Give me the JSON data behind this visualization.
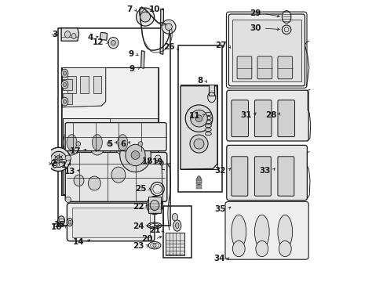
{
  "bg_color": "#ffffff",
  "lc": "#1a1a1a",
  "label_fs": 7.5,
  "labels": {
    "1": [
      0.075,
      0.415,
      0.088,
      0.43
    ],
    "2": [
      0.025,
      0.43,
      0.052,
      0.436
    ],
    "3": [
      0.022,
      0.87,
      0.058,
      0.862
    ],
    "4": [
      0.165,
      0.865,
      0.195,
      0.853
    ],
    "5": [
      0.248,
      0.49,
      0.264,
      0.502
    ],
    "6": [
      0.287,
      0.49,
      0.3,
      0.5
    ],
    "7": [
      0.298,
      0.962,
      0.311,
      0.952
    ],
    "8": [
      0.563,
      0.715,
      0.57,
      0.7
    ],
    "9": [
      0.302,
      0.8,
      0.318,
      0.79
    ],
    "9b": [
      0.32,
      0.748,
      0.328,
      0.758
    ],
    "10": [
      0.395,
      0.962,
      0.392,
      0.95
    ],
    "11": [
      0.55,
      0.59,
      0.558,
      0.6
    ],
    "12": [
      0.205,
      0.845,
      0.218,
      0.84
    ],
    "13": [
      0.105,
      0.39,
      0.128,
      0.4
    ],
    "14": [
      0.138,
      0.14,
      0.175,
      0.152
    ],
    "15": [
      0.06,
      0.2,
      0.072,
      0.208
    ],
    "16": [
      0.09,
      0.192,
      0.107,
      0.205
    ],
    "17": [
      0.13,
      0.46,
      0.16,
      0.47
    ],
    "18": [
      0.378,
      0.426,
      0.393,
      0.416
    ],
    "19": [
      0.412,
      0.422,
      0.42,
      0.412
    ],
    "20": [
      0.378,
      0.15,
      0.402,
      0.17
    ],
    "21": [
      0.402,
      0.178,
      0.408,
      0.166
    ],
    "22": [
      0.348,
      0.265,
      0.368,
      0.274
    ],
    "23": [
      0.348,
      0.125,
      0.368,
      0.132
    ],
    "24": [
      0.348,
      0.195,
      0.368,
      0.202
    ],
    "25": [
      0.358,
      0.328,
      0.375,
      0.322
    ],
    "26": [
      0.452,
      0.828,
      0.468,
      0.818
    ],
    "27": [
      0.635,
      0.835,
      0.655,
      0.825
    ],
    "28": [
      0.808,
      0.59,
      0.82,
      0.6
    ],
    "29": [
      0.752,
      0.95,
      0.772,
      0.935
    ],
    "30": [
      0.752,
      0.9,
      0.772,
      0.89
    ],
    "31": [
      0.72,
      0.59,
      0.738,
      0.602
    ],
    "32": [
      0.628,
      0.392,
      0.648,
      0.402
    ],
    "33": [
      0.782,
      0.392,
      0.802,
      0.404
    ],
    "34": [
      0.628,
      0.082,
      0.658,
      0.095
    ],
    "35": [
      0.628,
      0.256,
      0.648,
      0.265
    ]
  }
}
